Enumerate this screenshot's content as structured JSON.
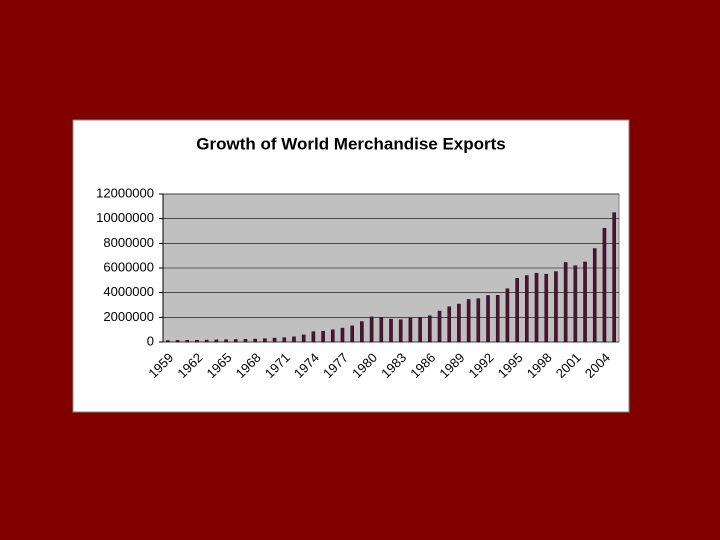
{
  "chart_data": {
    "type": "bar",
    "title": "Growth of World Merchandise Exports",
    "categories": [
      "1959",
      null,
      null,
      "1962",
      null,
      null,
      "1965",
      null,
      null,
      "1968",
      null,
      null,
      "1971",
      null,
      null,
      "1974",
      null,
      null,
      "1977",
      null,
      null,
      "1980",
      null,
      null,
      "1983",
      null,
      null,
      "1986",
      null,
      null,
      "1989",
      null,
      null,
      "1992",
      null,
      null,
      "1995",
      null,
      null,
      "1998",
      null,
      null,
      "2001",
      null,
      null,
      "2004",
      null
    ],
    "values": [
      115000,
      130000,
      134000,
      142000,
      157000,
      173000,
      187000,
      205000,
      215000,
      240000,
      273000,
      317000,
      350000,
      417000,
      579000,
      840000,
      877000,
      992000,
      1128000,
      1307000,
      1659000,
      2034000,
      2006000,
      1850000,
      1810000,
      1930000,
      1950000,
      2130000,
      2510000,
      2860000,
      3080000,
      3450000,
      3510000,
      3770000,
      3780000,
      4320000,
      5160000,
      5390000,
      5580000,
      5500000,
      5710000,
      6450000,
      6190000,
      6490000,
      7580000,
      9220000,
      10490000
    ],
    "color": "#4b1430",
    "ylim": [
      0,
      12000000
    ],
    "yticks": [
      0,
      2000000,
      4000000,
      6000000,
      8000000,
      10000000,
      12000000
    ],
    "grid": true
  }
}
